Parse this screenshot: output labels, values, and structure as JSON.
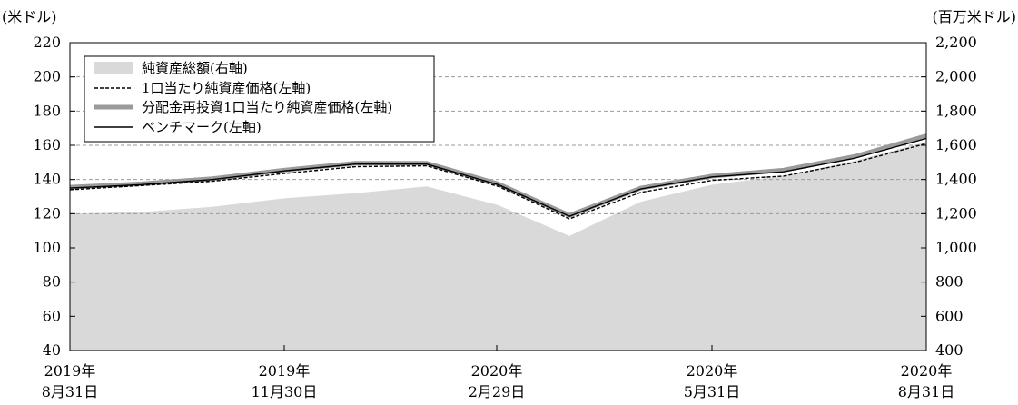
{
  "chart_data": {
    "type": "line",
    "y_left_label": "(米ドル)",
    "y_right_label": "(百万米ドル)",
    "y_left_range": [
      40,
      220
    ],
    "y_right_range": [
      400,
      2200
    ],
    "y_left_ticks": [
      "40",
      "60",
      "80",
      "100",
      "120",
      "140",
      "160",
      "180",
      "200",
      "220"
    ],
    "y_right_ticks": [
      "400",
      "600",
      "800",
      "1,000",
      "1,200",
      "1,400",
      "1,600",
      "1,800",
      "2,000",
      "2,200"
    ],
    "x_tick_labels": [
      {
        "year": "2019年",
        "date": "8月31日"
      },
      {
        "year": "2019年",
        "date": "11月30日"
      },
      {
        "year": "2020年",
        "date": "2月29日"
      },
      {
        "year": "2020年",
        "date": "5月31日"
      },
      {
        "year": "2020年",
        "date": "8月31日"
      }
    ],
    "x_tick_months": [
      0,
      3,
      6,
      9,
      12
    ],
    "grid": "horizontal dashed at left-axis 120, 140, 160, 180, 200",
    "legend_position": "top-left",
    "months": [
      0,
      1,
      2,
      3,
      4,
      5,
      6,
      7,
      8,
      9,
      10,
      11,
      12
    ],
    "series": [
      {
        "name": "純資産総額(右軸)",
        "axis": "right",
        "style": "area",
        "color": "#d9d9d9",
        "values": [
          1200,
          1210,
          1240,
          1290,
          1320,
          1360,
          1250,
          1070,
          1270,
          1370,
          1420,
          1510,
          1620
        ]
      },
      {
        "name": "1口当たり純資産価格(左軸)",
        "axis": "left",
        "style": "dashed",
        "color": "#000000",
        "values": [
          134,
          136.5,
          139,
          143.5,
          147.5,
          148,
          136,
          117,
          132.5,
          139.5,
          142,
          150,
          161
        ]
      },
      {
        "name": "分配金再投資1口当たり純資産価格(左軸)",
        "axis": "left",
        "style": "thick",
        "color": "#9a9a9a",
        "values": [
          135.5,
          137.5,
          140.5,
          145.5,
          149.5,
          149.5,
          137.5,
          119,
          135,
          142,
          145.5,
          153.5,
          165.5
        ]
      },
      {
        "name": "ベンチマーク(左軸)",
        "axis": "left",
        "style": "solid",
        "color": "#000000",
        "values": [
          135,
          137,
          140,
          145,
          149,
          149,
          137,
          118.5,
          134.5,
          141.5,
          144.5,
          152.5,
          164
        ]
      }
    ]
  }
}
